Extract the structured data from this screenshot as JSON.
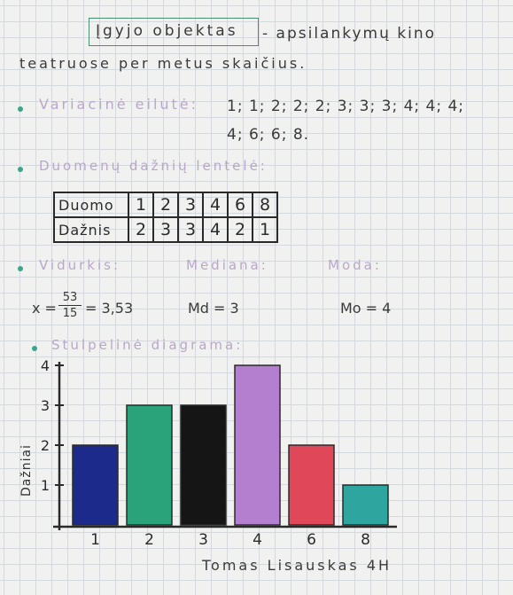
{
  "header": {
    "title_boxed": "Įgyjo objektas",
    "title_rest": "- apsilankymų kino",
    "title_line2": "teatruose per metus skaičius."
  },
  "sections": {
    "variation_label": "Variacinė eilutė:",
    "variation_line1": "1; 1; 2; 2; 2; 3; 3; 3; 4; 4; 4;",
    "variation_line2": "4; 6; 6; 8.",
    "freq_table_label": "Duomenų dažnių lentelė:",
    "mean_label": "Vidurkis:",
    "median_label": "Mediana:",
    "mode_label": "Moda:",
    "mean_prefix": "x =",
    "mean_num": "53",
    "mean_den": "15",
    "mean_result": "= 3,53",
    "median_value": "Md = 3",
    "mode_value": "Mo = 4",
    "chart_label": "Stulpelinė diagrama:"
  },
  "freq_table": {
    "row1_label": "Duomo",
    "row2_label": "Dažnis",
    "data": [
      "1",
      "2",
      "3",
      "4",
      "6",
      "8"
    ],
    "freq": [
      "2",
      "3",
      "3",
      "4",
      "2",
      "1"
    ]
  },
  "signature": "Tomas Lisauskas 4H",
  "chart_data": {
    "type": "bar",
    "categories": [
      "1",
      "2",
      "3",
      "4",
      "6",
      "8"
    ],
    "values": [
      2,
      3,
      3,
      4,
      2,
      1
    ],
    "colors": [
      "#1c2a8c",
      "#2aa37a",
      "#151515",
      "#b57fd0",
      "#e0485a",
      "#2ea59e"
    ],
    "ylabel": "Dažniai",
    "yticks": [
      "1",
      "2",
      "3",
      "4"
    ],
    "ylim": [
      0,
      4
    ],
    "grid": true,
    "legend": "none"
  }
}
